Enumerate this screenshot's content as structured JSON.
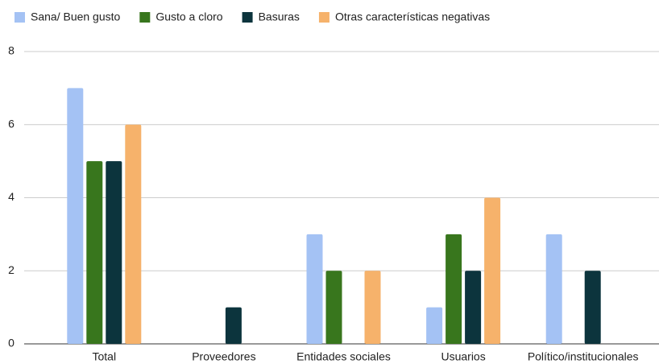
{
  "chart_data": {
    "type": "bar",
    "categories": [
      "Total",
      "Proveedores",
      "Entidades sociales",
      "Usuarios",
      "Político/institucionales"
    ],
    "series": [
      {
        "name": "Sana/ Buen gusto",
        "color": "#a4c2f4",
        "values": [
          7,
          0,
          3,
          1,
          3
        ]
      },
      {
        "name": "Gusto a cloro",
        "color": "#38761d",
        "values": [
          5,
          0,
          2,
          3,
          0
        ]
      },
      {
        "name": "Basuras",
        "color": "#0c343d",
        "values": [
          5,
          1,
          0,
          2,
          2
        ]
      },
      {
        "name": "Otras características negativas",
        "color": "#f6b26b",
        "values": [
          6,
          0,
          2,
          4,
          0
        ]
      }
    ],
    "ylim": [
      0,
      8
    ],
    "yticks": [
      0,
      2,
      4,
      6,
      8
    ],
    "grid": true,
    "legend": "top"
  }
}
